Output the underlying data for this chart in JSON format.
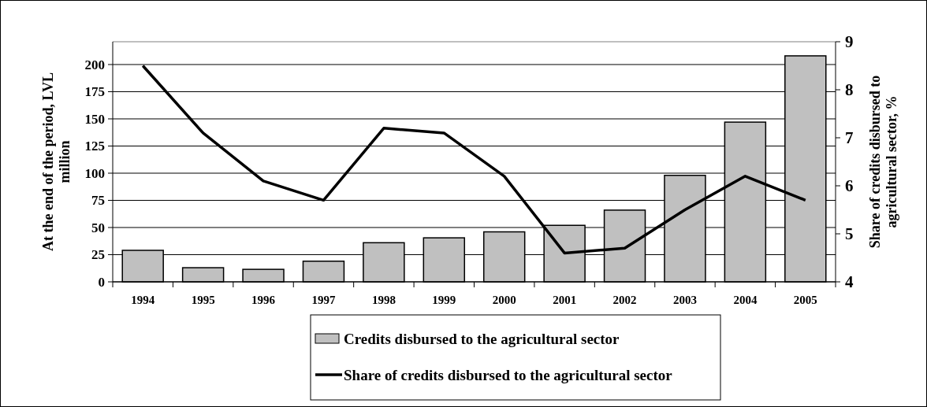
{
  "chart_data": {
    "type": "bar",
    "ylabel": "At the end of the period, LVL million",
    "y2label": "Share of credits disbursed to agricultural sector, %",
    "categories": [
      "1994",
      "1995",
      "1996",
      "1997",
      "1998",
      "1999",
      "2000",
      "2001",
      "2002",
      "2003",
      "2004",
      "2005"
    ],
    "series": [
      {
        "name": "Credits disbursed to the agricultural sector",
        "color": "#c0c0c0",
        "values": [
          29,
          13,
          11.5,
          19,
          36,
          40.5,
          46,
          52,
          66,
          98,
          147,
          208
        ]
      },
      {
        "name": "Share of credits disbursed to the agricultural sector",
        "type": "line",
        "axis": "y2",
        "color": "#000000",
        "values": [
          8.5,
          7.1,
          6.1,
          5.7,
          7.2,
          7.1,
          6.2,
          4.6,
          4.7,
          5.5,
          6.2,
          5.7
        ]
      }
    ],
    "ylim": [
      0,
      221
    ],
    "yticks": [
      0,
      25,
      50,
      75,
      100,
      125,
      150,
      175,
      200
    ],
    "y2lim": [
      4,
      9
    ],
    "y2ticks": [
      4,
      5,
      6,
      7,
      8,
      9
    ],
    "grid": "y",
    "legend": "bottom",
    "marker": "none",
    "line_style": "solid"
  }
}
